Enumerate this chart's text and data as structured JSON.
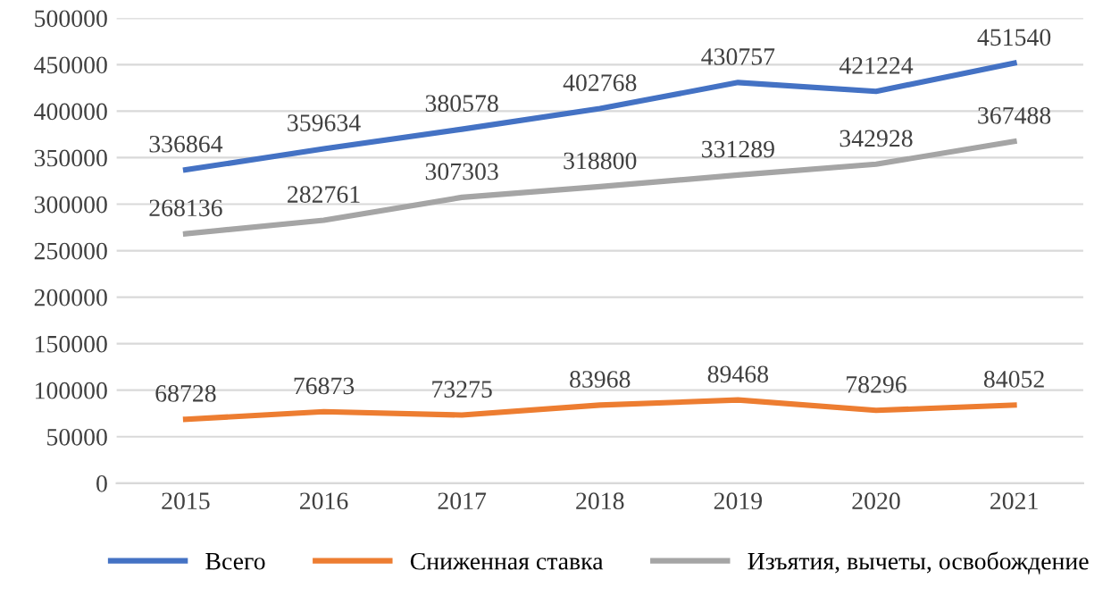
{
  "chart_data": {
    "type": "line",
    "categories": [
      "2015",
      "2016",
      "2017",
      "2018",
      "2019",
      "2020",
      "2021"
    ],
    "series": [
      {
        "name": "Всего",
        "color": "#4472c4",
        "values": [
          336864,
          359634,
          380578,
          402768,
          430757,
          421224,
          451540
        ]
      },
      {
        "name": "Сниженная ставка",
        "color": "#ed7d31",
        "values": [
          68728,
          76873,
          73275,
          83968,
          89468,
          78296,
          84052
        ]
      },
      {
        "name": "Изъятия, вычеты, освобождение",
        "color": "#a5a5a5",
        "values": [
          268136,
          282761,
          307303,
          318800,
          331289,
          342928,
          367488
        ]
      }
    ],
    "ylim": [
      0,
      500000
    ],
    "yticks": [
      0,
      50000,
      100000,
      150000,
      200000,
      250000,
      300000,
      350000,
      400000,
      450000,
      500000
    ],
    "grid": "y",
    "legend": "bottom",
    "data_labels": true,
    "marker": "none",
    "line_style": "solid"
  }
}
